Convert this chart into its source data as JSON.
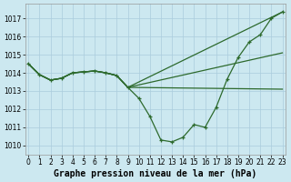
{
  "xlabel": "Graphe pression niveau de la mer (hPa)",
  "bg_color": "#cce8f0",
  "grid_color": "#aaccdd",
  "line_color": "#2d6a2d",
  "ylim": [
    1009.5,
    1017.8
  ],
  "xlim": [
    -0.3,
    23.3
  ],
  "yticks": [
    1010,
    1011,
    1012,
    1013,
    1014,
    1015,
    1016,
    1017
  ],
  "xticks": [
    0,
    1,
    2,
    3,
    4,
    5,
    6,
    7,
    8,
    9,
    10,
    11,
    12,
    13,
    14,
    15,
    16,
    17,
    18,
    19,
    20,
    21,
    22,
    23
  ],
  "series": [
    {
      "x": [
        0,
        1,
        2,
        3,
        4,
        5,
        6,
        7,
        8,
        9,
        10,
        11,
        12,
        13,
        14,
        15,
        16,
        17,
        18,
        19,
        20,
        21,
        22,
        23
      ],
      "y": [
        1014.5,
        1013.9,
        1013.6,
        1013.7,
        1014.0,
        1014.05,
        1014.1,
        1014.0,
        1013.85,
        1013.2,
        1012.6,
        1011.6,
        1010.3,
        1010.2,
        1010.45,
        1011.15,
        1011.0,
        1012.1,
        1013.65,
        1014.85,
        1015.7,
        1016.1,
        1017.0,
        1017.35
      ],
      "marker": true
    },
    {
      "x": [
        0,
        1,
        2,
        3,
        4,
        5,
        6,
        7,
        8,
        9,
        23
      ],
      "y": [
        1014.5,
        1013.9,
        1013.6,
        1013.7,
        1014.0,
        1014.05,
        1014.1,
        1014.0,
        1013.85,
        1013.2,
        1013.1
      ],
      "marker": false
    },
    {
      "x": [
        0,
        1,
        2,
        3,
        4,
        5,
        6,
        7,
        8,
        9,
        23
      ],
      "y": [
        1014.5,
        1013.9,
        1013.6,
        1013.7,
        1014.0,
        1014.05,
        1014.1,
        1014.0,
        1013.85,
        1013.2,
        1015.1
      ],
      "marker": false
    },
    {
      "x": [
        0,
        1,
        2,
        3,
        4,
        5,
        6,
        7,
        8,
        9,
        23
      ],
      "y": [
        1014.5,
        1013.9,
        1013.6,
        1013.7,
        1014.0,
        1014.05,
        1014.1,
        1014.0,
        1013.85,
        1013.2,
        1017.35
      ],
      "marker": false
    }
  ],
  "xlabel_fontsize": 7,
  "tick_fontsize": 5.5
}
